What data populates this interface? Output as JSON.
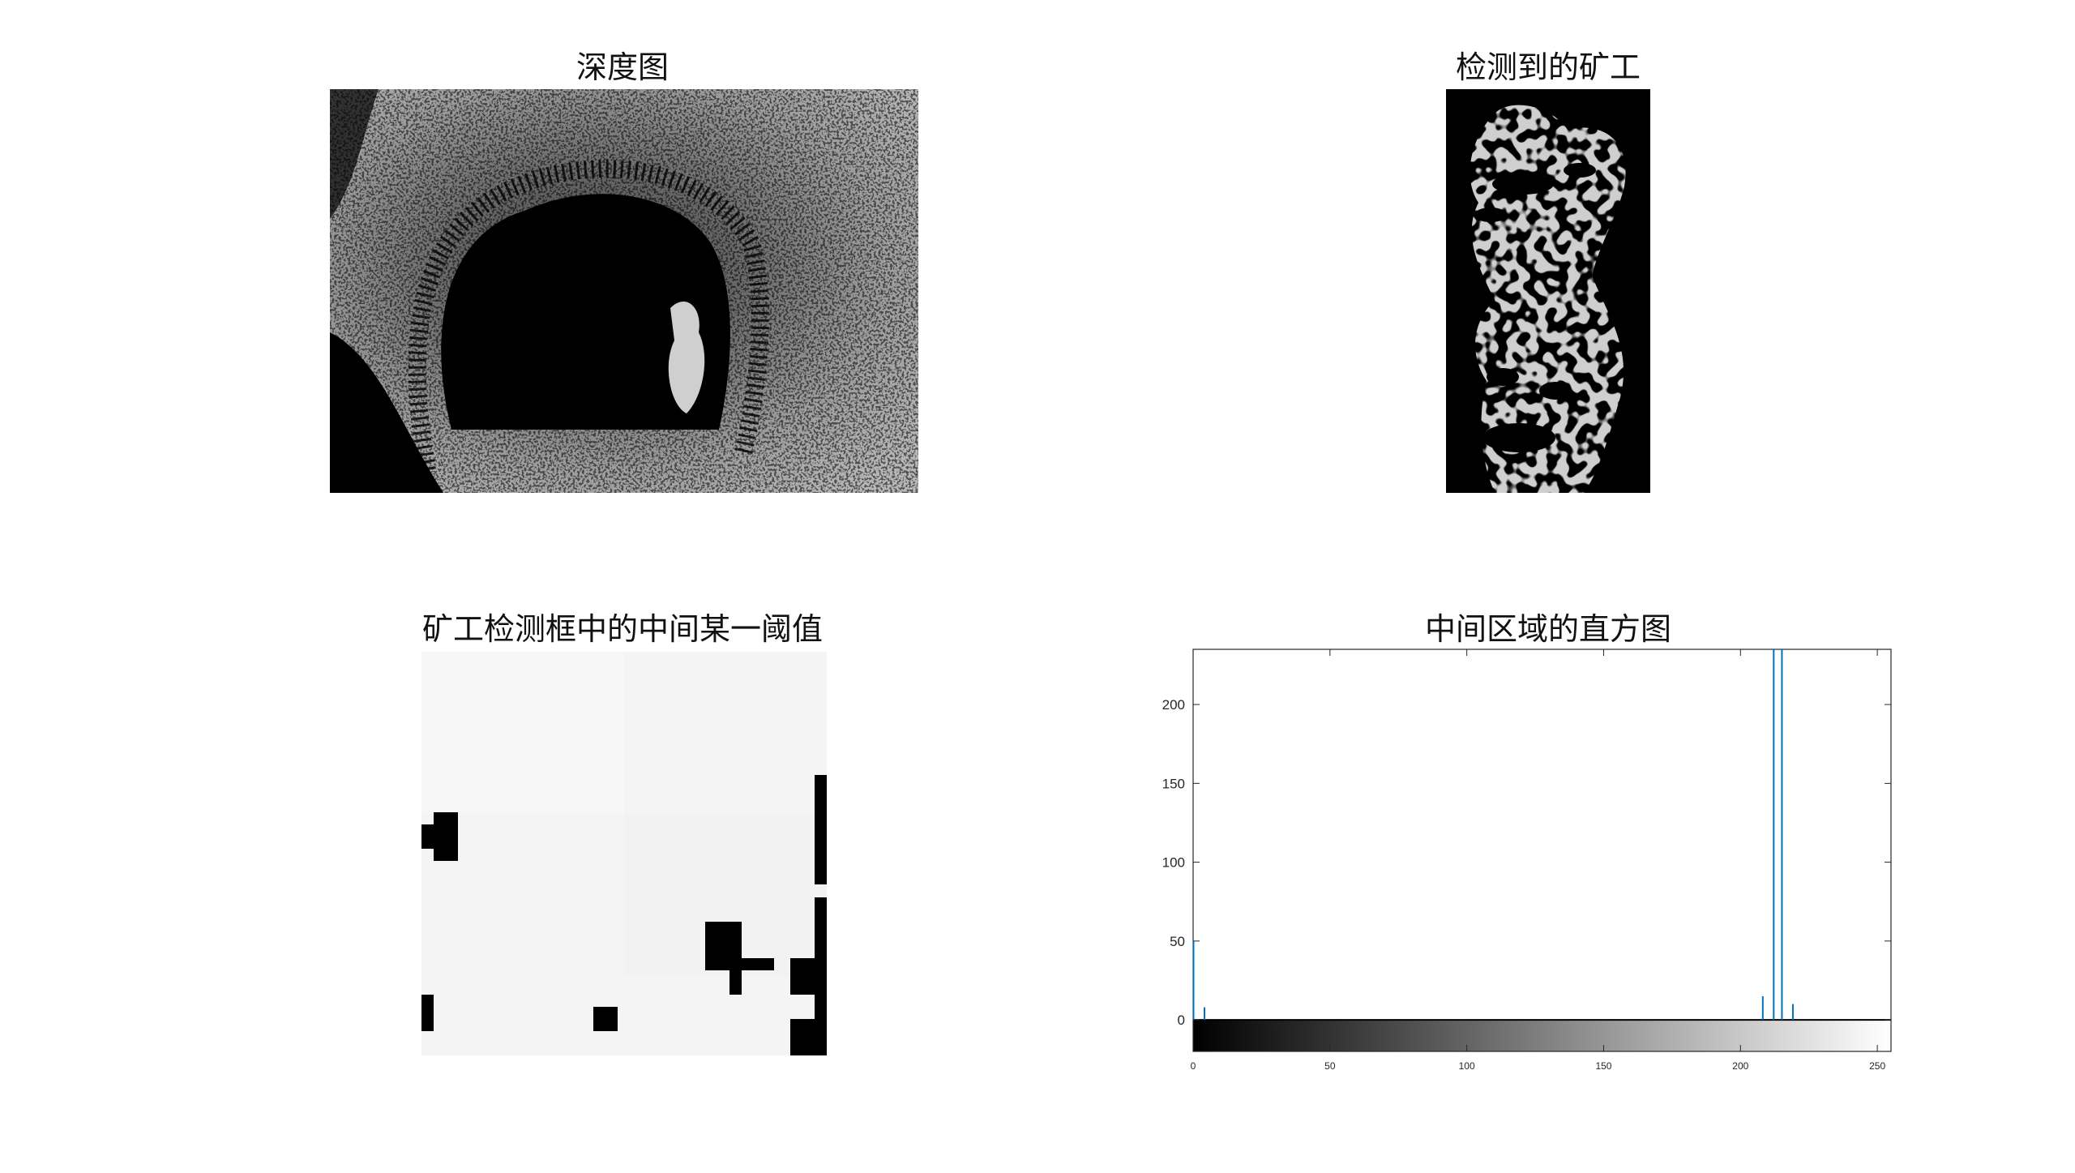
{
  "figure": {
    "panels": [
      {
        "title": "深度图"
      },
      {
        "title": "检测到的矿工"
      },
      {
        "title": "矿工检测框中的中间某一阈值"
      },
      {
        "title": "中间区域的直方图"
      }
    ]
  },
  "chart_data": [
    {
      "type": "image",
      "title": "深度图"
    },
    {
      "type": "image",
      "title": "检测到的矿工"
    },
    {
      "type": "image",
      "title": "矿工检测框中的中间某一阈值"
    },
    {
      "type": "bar",
      "title": "中间区域的直方图",
      "xlim": [
        0,
        255
      ],
      "ylim": [
        -20,
        235
      ],
      "yticks": [
        0,
        50,
        100,
        150,
        200
      ],
      "xticks": [
        0,
        50,
        100,
        150,
        200,
        250
      ],
      "series_color": "#0072BD",
      "x": [
        0,
        4,
        208,
        212,
        215,
        219
      ],
      "values": [
        50,
        8,
        15,
        235,
        235,
        10
      ],
      "colorbar": {
        "range": [
          0,
          255
        ],
        "from": "#000000",
        "to": "#ffffff"
      }
    }
  ]
}
